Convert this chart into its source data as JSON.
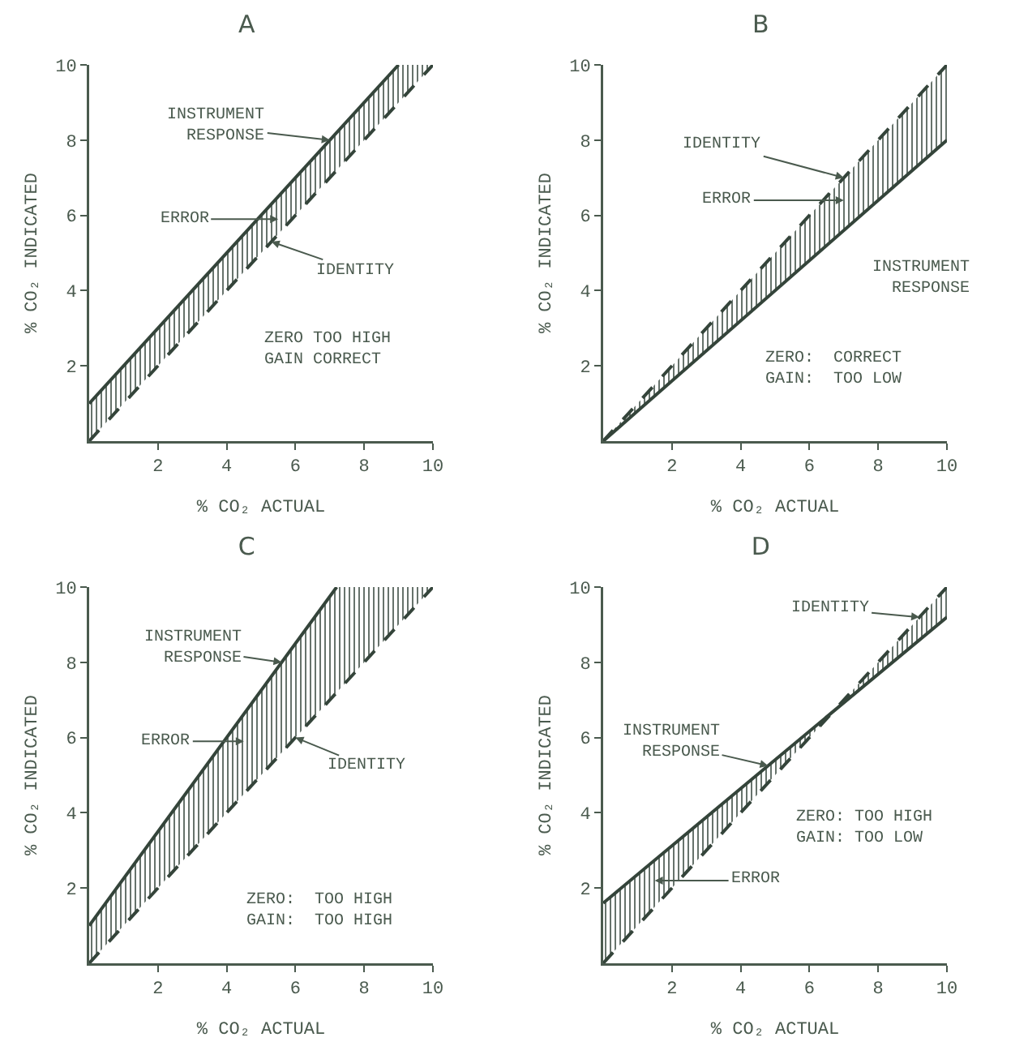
{
  "chart_data": [
    {
      "type": "line",
      "title": "A",
      "xlabel": "% CO₂ ACTUAL",
      "ylabel": "% CO₂ INDICATED",
      "xlim": [
        0,
        10
      ],
      "ylim": [
        0,
        10
      ],
      "xticks": [
        2,
        4,
        6,
        8,
        10
      ],
      "yticks": [
        2,
        4,
        6,
        8,
        10
      ],
      "grid": false,
      "marker": "none",
      "series": [
        {
          "color": "#34443a",
          "line_style": "solid",
          "x": [
            0,
            9,
            10
          ],
          "values": [
            1,
            10,
            null
          ],
          "lower": [
            0,
            9,
            10
          ],
          "upper": [
            1,
            10,
            10
          ]
        },
        {
          "color": "#34443a",
          "line_style": "dashed",
          "x": [
            0,
            10
          ],
          "values": [
            0,
            10
          ]
        }
      ],
      "annotations": [
        {
          "text": "INSTRUMENT\nRESPONSE",
          "x": 7,
          "y": 8
        },
        "ERROR",
        {
          "text": "IDENTITY",
          "x": 5.3,
          "y": 5.3
        },
        "ZERO TOO HIGH\nGAIN CORRECT"
      ]
    },
    {
      "type": "line",
      "title": "B",
      "xlabel": "% CO₂ ACTUAL",
      "ylabel": "% CO₂ INDICATED",
      "xlim": [
        0,
        10
      ],
      "ylim": [
        0,
        10
      ],
      "xticks": [
        2,
        4,
        6,
        8,
        10
      ],
      "yticks": [
        2,
        4,
        6,
        8,
        10
      ],
      "grid": false,
      "marker": "none",
      "series": [
        {
          "color": "#34443a",
          "line_style": "solid",
          "x": [
            0,
            10
          ],
          "values": [
            0,
            8
          ],
          "lower": [
            0,
            8
          ],
          "upper": [
            0,
            10
          ]
        },
        {
          "color": "#34443a",
          "line_style": "dashed",
          "x": [
            0,
            10
          ],
          "values": [
            0,
            10
          ]
        }
      ],
      "annotations": [
        {
          "text": "IDENTITY",
          "x": 7,
          "y": 7
        },
        "ERROR",
        {
          "text": "INSTRUMENT\nRESPONSE",
          "x": 7,
          "y": 5.6
        },
        "ZERO:  CORRECT\nGAIN:  TOO LOW"
      ]
    },
    {
      "type": "line",
      "title": "C",
      "xlabel": "% CO₂ ACTUAL",
      "ylabel": "% CO₂ INDICATED",
      "xlim": [
        0,
        10
      ],
      "ylim": [
        0,
        10
      ],
      "xticks": [
        2,
        4,
        6,
        8,
        10
      ],
      "yticks": [
        2,
        4,
        6,
        8,
        10
      ],
      "grid": false,
      "marker": "none",
      "series": [
        {
          "color": "#34443a",
          "line_style": "solid",
          "x": [
            0,
            7.2,
            10
          ],
          "values": [
            1,
            10,
            null
          ],
          "lower": [
            0,
            7.2,
            10
          ],
          "upper": [
            1,
            10,
            10
          ]
        },
        {
          "color": "#34443a",
          "line_style": "dashed",
          "x": [
            0,
            10
          ],
          "values": [
            0,
            10
          ]
        }
      ],
      "annotations": [
        {
          "text": "INSTRUMENT\nRESPONSE",
          "x": 5.6,
          "y": 8
        },
        "ERROR",
        {
          "text": "IDENTITY",
          "x": 6,
          "y": 6
        },
        "ZERO:  TOO HIGH\nGAIN:  TOO HIGH"
      ]
    },
    {
      "type": "line",
      "title": "D",
      "xlabel": "% CO₂ ACTUAL",
      "ylabel": "% CO₂ INDICATED",
      "xlim": [
        0,
        10
      ],
      "ylim": [
        0,
        10
      ],
      "xticks": [
        2,
        4,
        6,
        8,
        10
      ],
      "yticks": [
        2,
        4,
        6,
        8,
        10
      ],
      "grid": false,
      "marker": "none",
      "series": [
        {
          "color": "#34443a",
          "line_style": "solid",
          "x": [
            0,
            6.7,
            10
          ],
          "values": [
            1.6,
            6.7,
            9.2
          ],
          "lower": [
            0,
            6.7,
            9.2
          ],
          "upper": [
            1.6,
            6.7,
            10
          ]
        },
        {
          "color": "#34443a",
          "line_style": "dashed",
          "x": [
            0,
            10
          ],
          "values": [
            0,
            10
          ]
        }
      ],
      "annotations": [
        {
          "text": "IDENTITY",
          "x": 9.2,
          "y": 9.2
        },
        {
          "text": "INSTRUMENT\nRESPONSE",
          "x": 4.8,
          "y": 5.25
        },
        "ERROR",
        "ZERO: TOO HIGH\nGAIN: TOO LOW"
      ]
    }
  ]
}
